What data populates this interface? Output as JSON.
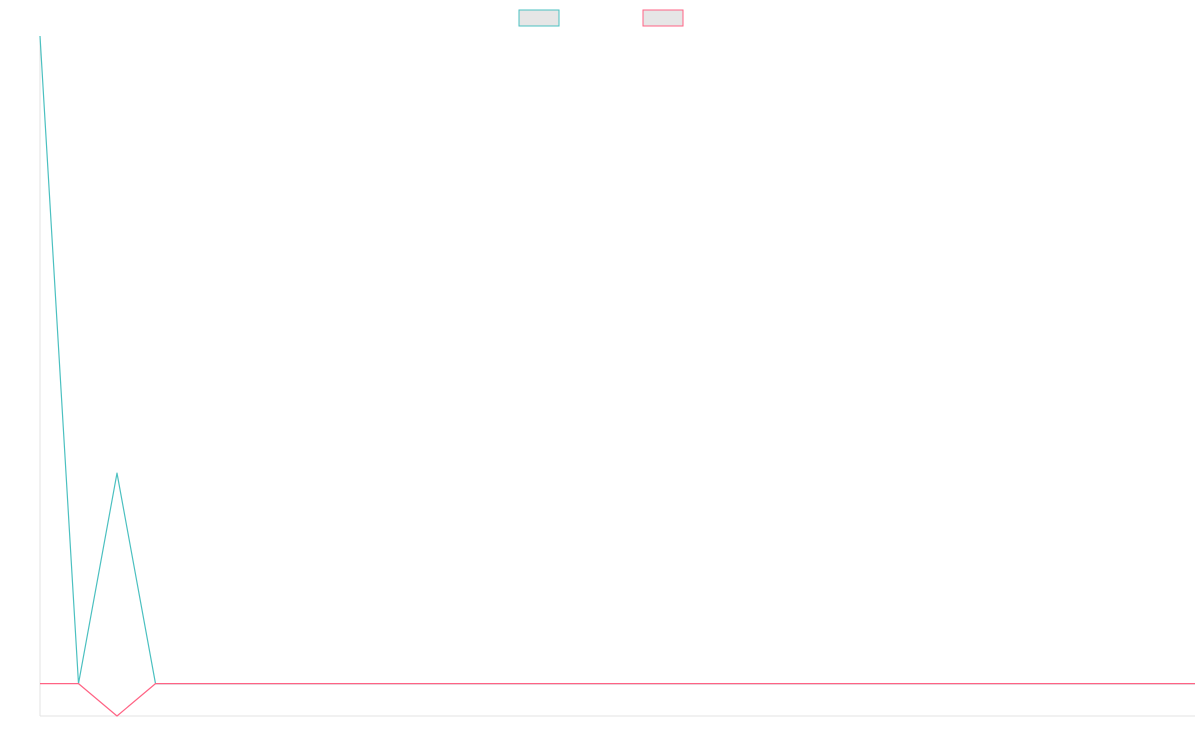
{
  "chart_data": {
    "type": "line",
    "title": "",
    "xlabel": "",
    "ylabel": "",
    "grid": false,
    "legend_placement": "top-center",
    "x": [
      0,
      1,
      2,
      3,
      4,
      5,
      6,
      7,
      8,
      9,
      10,
      11,
      12,
      13,
      14,
      15,
      16,
      17,
      18,
      19,
      20,
      21,
      22,
      23,
      24,
      25,
      26,
      27,
      28,
      29,
      30
    ],
    "xlim": [
      0,
      30
    ],
    "ylim": [
      -0.05,
      1.0
    ],
    "series": [
      {
        "name": "",
        "color": "#4bc0c0",
        "fill": "#e6e6e6",
        "values": [
          1.0,
          0.0,
          0.325,
          0.0,
          0.0,
          0.0,
          0.0,
          0.0,
          0.0,
          0.0,
          0.0,
          0.0,
          0.0,
          0.0,
          0.0,
          0.0,
          0.0,
          0.0,
          0.0,
          0.0,
          0.0,
          0.0,
          0.0,
          0.0,
          0.0,
          0.0,
          0.0,
          0.0,
          0.0,
          0.0,
          0.0
        ]
      },
      {
        "name": "",
        "color": "#ff6384",
        "fill": "#e6e6e6",
        "values": [
          0.0,
          0.0,
          -0.05,
          0.0,
          0.0,
          0.0,
          0.0,
          0.0,
          0.0,
          0.0,
          0.0,
          0.0,
          0.0,
          0.0,
          0.0,
          0.0,
          0.0,
          0.0,
          0.0,
          0.0,
          0.0,
          0.0,
          0.0,
          0.0,
          0.0,
          0.0,
          0.0,
          0.0,
          0.0,
          0.0,
          0.0
        ]
      }
    ]
  }
}
